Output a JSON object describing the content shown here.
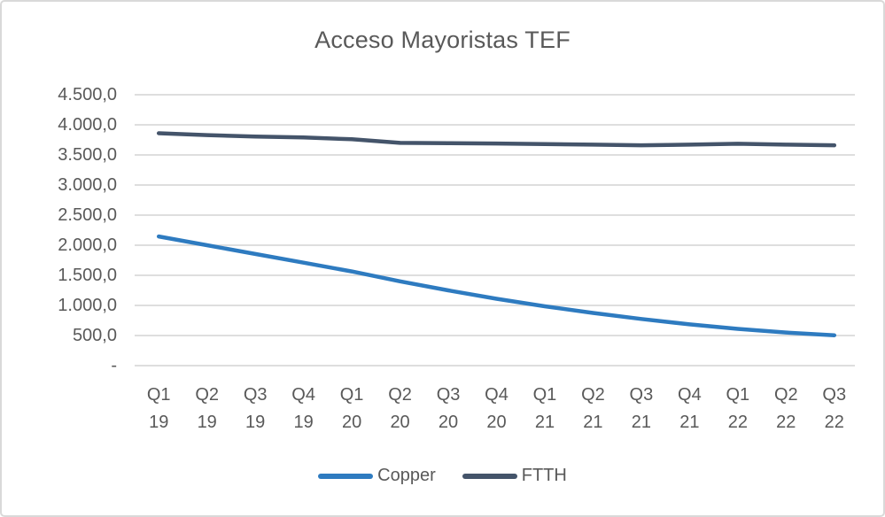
{
  "window": {
    "background_color": "#FFFFFF",
    "border_color": "#D9D9D9"
  },
  "styles": {
    "text_color": "#595959",
    "gridline_color": "#D9D9D9"
  },
  "chart_data": {
    "type": "line",
    "title": "Acceso Mayoristas TEF",
    "categories": [
      "Q1 19",
      "Q2 19",
      "Q3 19",
      "Q4 19",
      "Q1 20",
      "Q2 20",
      "Q3 20",
      "Q4 20",
      "Q1 21",
      "Q2 21",
      "Q3 21",
      "Q4 21",
      "Q1 22",
      "Q2 22",
      "Q3 22"
    ],
    "series": [
      {
        "name": "Copper",
        "color": "#2E7BC0",
        "values": [
          2145,
          2000,
          1855,
          1710,
          1565,
          1400,
          1250,
          1110,
          985,
          875,
          775,
          685,
          610,
          550,
          505
        ]
      },
      {
        "name": "FTTH",
        "color": "#44546A",
        "values": [
          3860,
          3830,
          3805,
          3790,
          3760,
          3700,
          3695,
          3690,
          3680,
          3670,
          3660,
          3670,
          3685,
          3670,
          3660
        ]
      }
    ],
    "y_axis": {
      "min": 0,
      "max": 4500,
      "step": 500,
      "tick_labels_top_to_bottom": [
        "4.500,0",
        "4.000,0",
        "3.500,0",
        "3.000,0",
        "2.500,0",
        "2.000,0",
        "1.500,0",
        "1.000,0",
        "500,0",
        "-"
      ]
    },
    "x_axis": {
      "label_line_1": [
        "Q1",
        "Q2",
        "Q3",
        "Q4",
        "Q1",
        "Q2",
        "Q3",
        "Q4",
        "Q1",
        "Q2",
        "Q3",
        "Q4",
        "Q1",
        "Q2",
        "Q3"
      ],
      "label_line_2": [
        "19",
        "19",
        "19",
        "19",
        "20",
        "20",
        "20",
        "20",
        "21",
        "21",
        "21",
        "21",
        "22",
        "22",
        "22"
      ]
    },
    "grid": true,
    "legend_position": "bottom",
    "line_width": 4.5
  }
}
